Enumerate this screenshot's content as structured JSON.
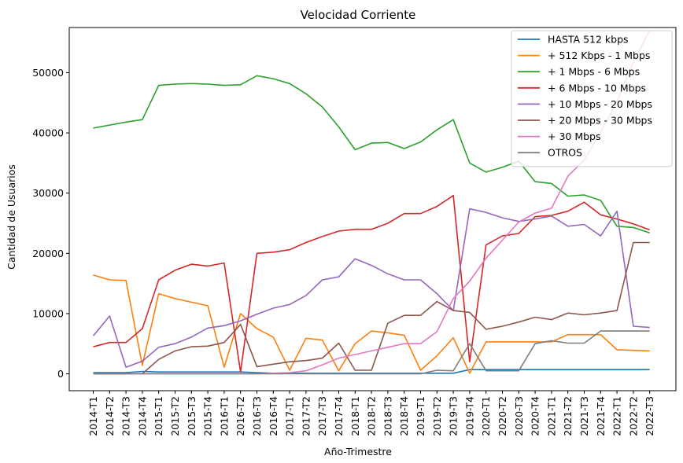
{
  "chart_data": {
    "type": "line",
    "title": "Velocidad Corriente",
    "xlabel": "Año-Trimestre",
    "ylabel": "Cantidad de Usuarios",
    "ylim": [
      -2800,
      57500
    ],
    "yticks": [
      0,
      10000,
      20000,
      30000,
      40000,
      50000
    ],
    "grid": false,
    "legend_position": "top-right",
    "categories": [
      "2014-T1",
      "2014-T2",
      "2014-T3",
      "2014-T4",
      "2015-T1",
      "2015-T2",
      "2015-T3",
      "2015-T4",
      "2016-T1",
      "2016-T2",
      "2016-T3",
      "2016-T4",
      "2017-T1",
      "2017-T2",
      "2017-T3",
      "2017-T4",
      "2018-T1",
      "2018-T2",
      "2018-T3",
      "2018-T4",
      "2019-T1",
      "2019-T2",
      "2019-T3",
      "2019-T4",
      "2020-T1",
      "2020-T2",
      "2020-T3",
      "2020-T4",
      "2021-T1",
      "2021-T2",
      "2021-T3",
      "2021-T4",
      "2022-T1",
      "2022-T2",
      "2022-T3"
    ],
    "series": [
      {
        "name": "HASTA 512 kbps",
        "color": "#1f77b4",
        "values": [
          200,
          200,
          200,
          400,
          300,
          300,
          300,
          300,
          300,
          300,
          200,
          100,
          100,
          100,
          100,
          100,
          100,
          100,
          100,
          100,
          100,
          100,
          100,
          700,
          700,
          700,
          700,
          700,
          700,
          700,
          700,
          700,
          700,
          700,
          700
        ]
      },
      {
        "name": "+ 512 Kbps - 1 Mbps",
        "color": "#ff7f0e",
        "values": [
          16400,
          15600,
          15500,
          1400,
          13300,
          12500,
          11900,
          11300,
          1100,
          10000,
          7500,
          6100,
          600,
          5900,
          5600,
          500,
          5000,
          7100,
          6800,
          6400,
          600,
          3000,
          6000,
          100,
          5300,
          5300,
          5300,
          5300,
          5300,
          6500,
          6500,
          6500,
          4000,
          3900,
          3800
        ]
      },
      {
        "name": "+ 1 Mbps - 6 Mbps",
        "color": "#2ca02c",
        "values": [
          40800,
          41300,
          41800,
          42200,
          47900,
          48100,
          48200,
          48100,
          47900,
          48000,
          49500,
          49000,
          48200,
          46500,
          44300,
          41000,
          37200,
          38300,
          38400,
          37400,
          38500,
          40500,
          42200,
          35000,
          33500,
          34300,
          35300,
          31900,
          31600,
          29500,
          29700,
          28800,
          24500,
          24300,
          23400
        ]
      },
      {
        "name": "+ 6 Mbps - 10 Mbps",
        "color": "#d62728",
        "values": [
          4500,
          5200,
          5200,
          7500,
          15600,
          17200,
          18200,
          17900,
          18400,
          300,
          20000,
          20200,
          20600,
          21800,
          22800,
          23700,
          24000,
          24000,
          25000,
          26600,
          26600,
          27800,
          29600,
          2000,
          21400,
          22900,
          23300,
          26100,
          26300,
          27000,
          28500,
          26400,
          25700,
          24900,
          23900
        ]
      },
      {
        "name": "+ 10 Mbps - 20 Mbps",
        "color": "#9467bd",
        "values": [
          6300,
          9600,
          1100,
          2100,
          4400,
          5000,
          6100,
          7600,
          8000,
          8800,
          9900,
          10900,
          11500,
          13000,
          15600,
          16100,
          19100,
          18000,
          16600,
          15600,
          15600,
          13300,
          10500,
          27400,
          26800,
          25900,
          25300,
          25700,
          26200,
          24500,
          24800,
          22900,
          27000,
          7900,
          7700
        ]
      },
      {
        "name": "+ 20 Mbps - 30 Mbps",
        "color": "#8c564b",
        "values": [
          0,
          0,
          0,
          0,
          2400,
          3800,
          4500,
          4600,
          5200,
          8200,
          1200,
          1600,
          2000,
          2200,
          2600,
          5100,
          600,
          600,
          8400,
          9700,
          9700,
          12000,
          10500,
          10200,
          7400,
          7900,
          8600,
          9400,
          9000,
          10100,
          9800,
          10100,
          10500,
          21800,
          21800
        ]
      },
      {
        "name": "+ 30 Mbps",
        "color": "#e377c2",
        "values": [
          0,
          0,
          0,
          0,
          0,
          0,
          0,
          0,
          0,
          0,
          0,
          100,
          200,
          500,
          1500,
          2600,
          3200,
          3800,
          4400,
          5000,
          5000,
          7000,
          12500,
          15400,
          19200,
          22200,
          25200,
          26700,
          27500,
          32800,
          35500,
          40100,
          45200,
          51800,
          57000
        ]
      },
      {
        "name": "OTROS",
        "color": "#7f7f7f",
        "values": [
          0,
          0,
          0,
          0,
          0,
          0,
          0,
          0,
          0,
          0,
          0,
          0,
          0,
          0,
          0,
          0,
          0,
          0,
          0,
          0,
          0,
          600,
          500,
          5000,
          500,
          500,
          500,
          5000,
          5500,
          5100,
          5100,
          7100,
          7100,
          7100,
          7100
        ]
      }
    ]
  }
}
